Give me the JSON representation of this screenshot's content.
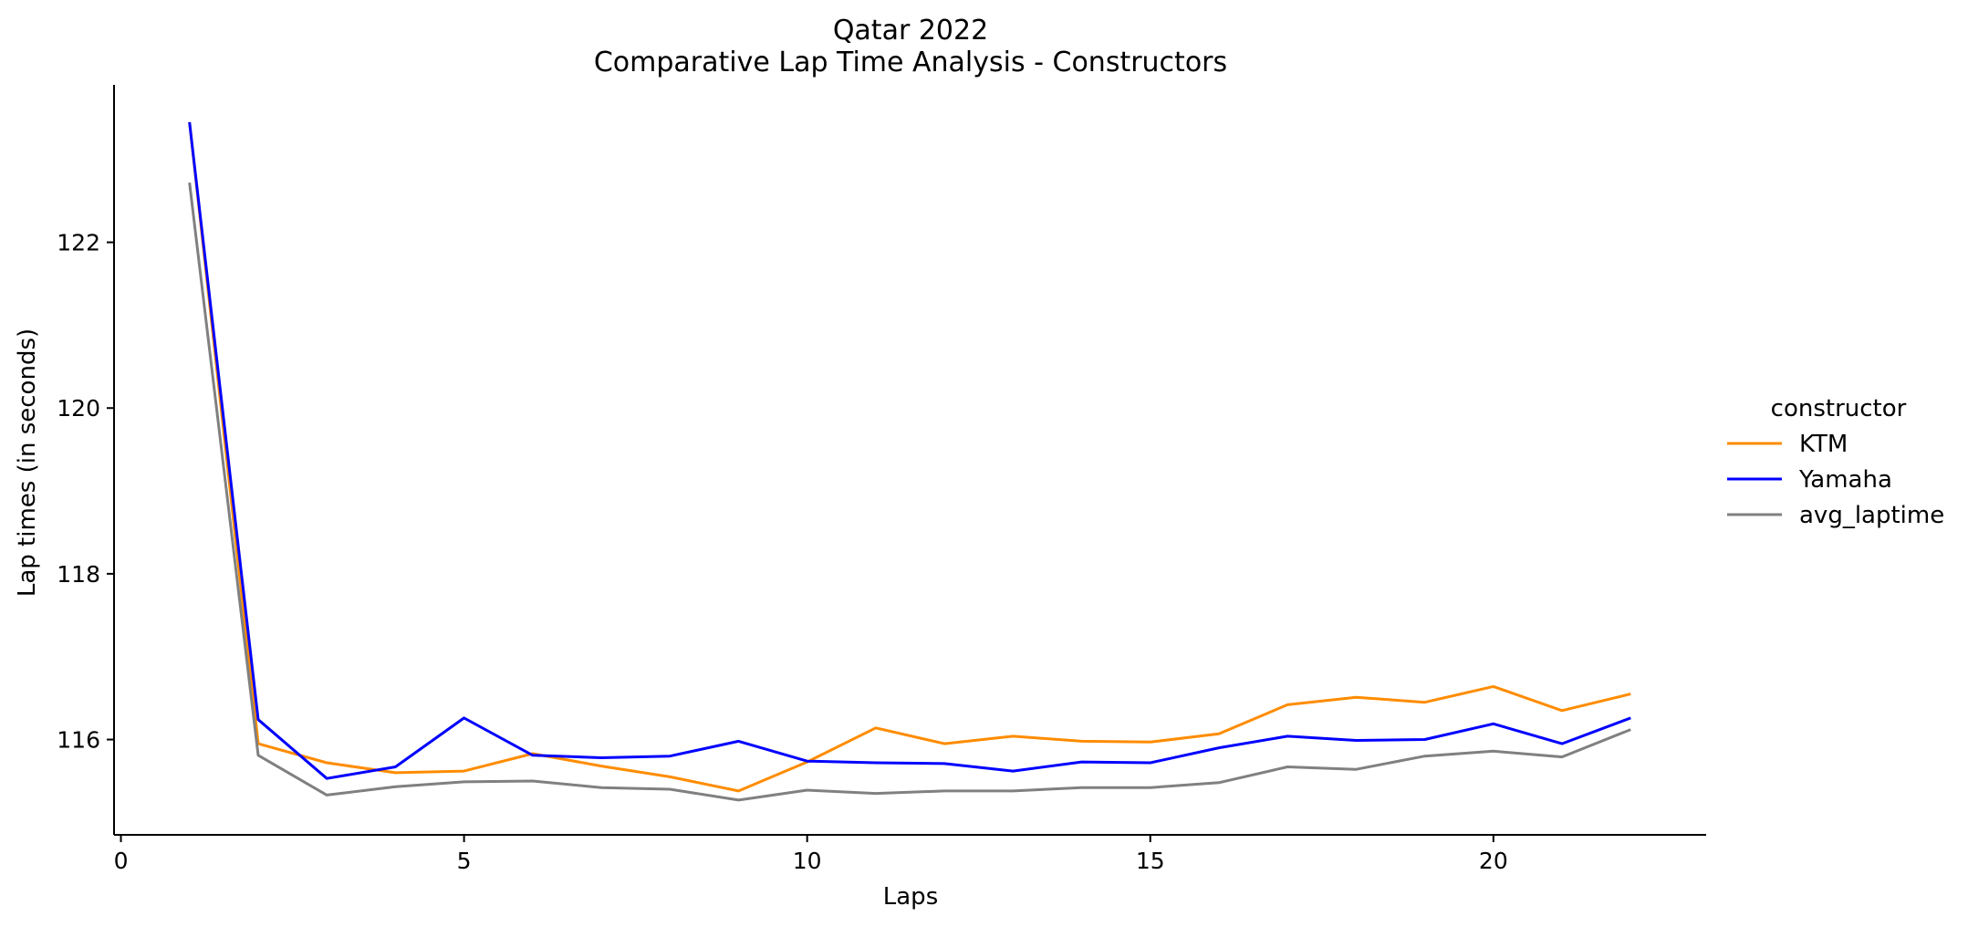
{
  "chart_data": {
    "type": "line",
    "title": "Qatar 2022",
    "subtitle": "Comparative Lap Time Analysis - Constructors",
    "xlabel": "Laps",
    "ylabel": "Lap times (in seconds)",
    "xlim": [
      -0.1,
      23.1
    ],
    "ylim": [
      114.85,
      123.9
    ],
    "x_ticks": [
      0,
      5,
      10,
      15,
      20
    ],
    "y_ticks": [
      116,
      118,
      120,
      122
    ],
    "grid": false,
    "legend": {
      "title": "constructor",
      "placement": "right"
    },
    "x": [
      1,
      2,
      3,
      4,
      5,
      6,
      7,
      8,
      9,
      10,
      11,
      12,
      13,
      14,
      15,
      16,
      17,
      18,
      19,
      20,
      21,
      22
    ],
    "series": [
      {
        "name": "KTM",
        "color": "#ff8c00",
        "values": [
          123.45,
          115.95,
          115.72,
          115.6,
          115.62,
          115.83,
          115.68,
          115.55,
          115.38,
          115.73,
          116.14,
          115.95,
          116.04,
          115.98,
          115.97,
          116.07,
          116.42,
          116.51,
          116.45,
          116.64,
          116.35,
          116.55
        ]
      },
      {
        "name": "Yamaha",
        "color": "#0000ff",
        "values": [
          123.45,
          116.24,
          115.53,
          115.67,
          116.26,
          115.81,
          115.78,
          115.8,
          115.98,
          115.74,
          115.72,
          115.71,
          115.62,
          115.73,
          115.72,
          115.9,
          116.04,
          115.99,
          116.0,
          116.19,
          115.95,
          116.26
        ]
      },
      {
        "name": "avg_laptime",
        "color": "#808080",
        "values": [
          122.72,
          115.81,
          115.33,
          115.43,
          115.49,
          115.5,
          115.42,
          115.4,
          115.27,
          115.39,
          115.35,
          115.38,
          115.38,
          115.42,
          115.42,
          115.48,
          115.67,
          115.64,
          115.8,
          115.86,
          115.79,
          116.12
        ]
      }
    ]
  }
}
